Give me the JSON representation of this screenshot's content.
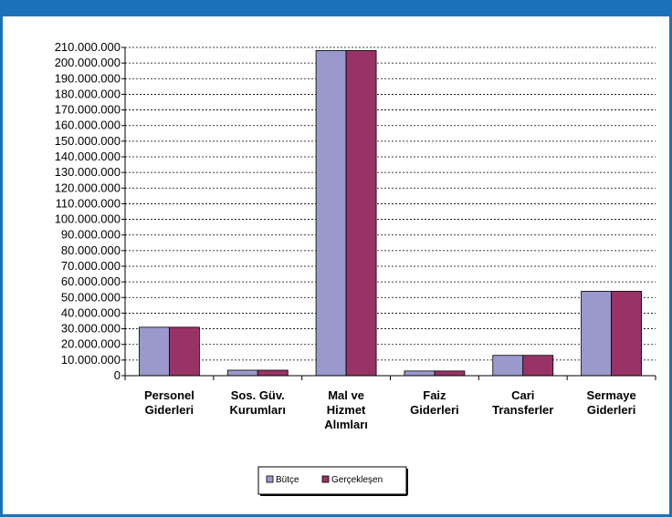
{
  "colors": {
    "frame": "#1b72b8",
    "series_butce": "#9999cc",
    "series_gerceklesen": "#993366",
    "gridline": "#000000"
  },
  "chart_data": {
    "type": "bar",
    "title": "",
    "xlabel": "",
    "ylabel": "",
    "categories": [
      [
        "Personel",
        "Giderleri"
      ],
      [
        "Sos. Güv.",
        "Kurumları"
      ],
      [
        "Mal ve",
        "Hizmet",
        "Alımları"
      ],
      [
        "Faiz",
        "Giderleri"
      ],
      [
        "Cari",
        "Transferler"
      ],
      [
        "Sermaye",
        "Giderleri"
      ]
    ],
    "series": [
      {
        "name": "Bütçe",
        "values": [
          31000000,
          3500000,
          208000000,
          3000000,
          13000000,
          54000000
        ]
      },
      {
        "name": "Gerçekleşen",
        "values": [
          31000000,
          3500000,
          208000000,
          3000000,
          13000000,
          54000000
        ]
      }
    ],
    "ylim": [
      0,
      210000000
    ],
    "ytick_step": 10000000,
    "ytick_labels": [
      "0",
      "10.000.000",
      "20.000.000",
      "30.000.000",
      "40.000.000",
      "50.000.000",
      "60.000.000",
      "70.000.000",
      "80.000.000",
      "90.000.000",
      "100.000.000",
      "110.000.000",
      "120.000.000",
      "130.000.000",
      "140.000.000",
      "150.000.000",
      "160.000.000",
      "170.000.000",
      "180.000.000",
      "190.000.000",
      "200.000.000",
      "210.000.000"
    ],
    "grid": true,
    "legend_position": "bottom"
  }
}
